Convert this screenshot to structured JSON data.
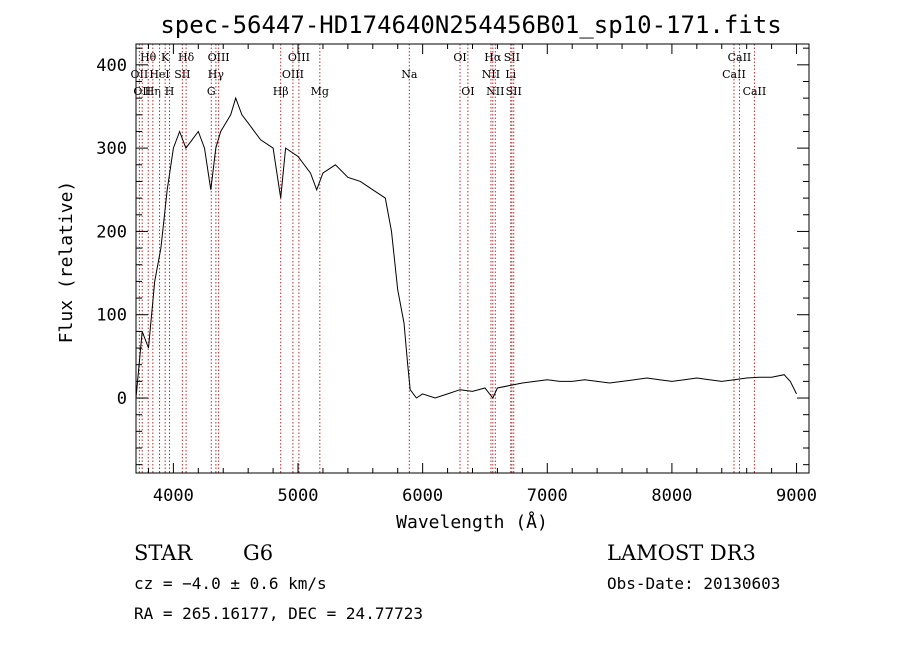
{
  "chart_data": {
    "type": "line",
    "title": "spec-56447-HD174640N254456B01_sp10-171.fits",
    "xlabel": "Wavelength (Å)",
    "ylabel": "Flux (relative)",
    "xlim": [
      3700,
      9100
    ],
    "ylim": [
      -90,
      425
    ],
    "x_ticks": [
      4000,
      5000,
      6000,
      7000,
      8000,
      9000
    ],
    "x_tick_labels": [
      "4000",
      "5000",
      "6000",
      "7000",
      "8000",
      "9000"
    ],
    "y_ticks": [
      0,
      100,
      200,
      300,
      400
    ],
    "y_tick_labels": [
      "0",
      "100",
      "200",
      "300",
      "400"
    ],
    "grid": false,
    "line_color": "#000000",
    "marker_color": "#b03030",
    "series": [
      {
        "x": [
          3700,
          3750,
          3800,
          3850,
          3900,
          3950,
          4000,
          4050,
          4100,
          4150,
          4200,
          4250,
          4300,
          4340,
          4380,
          4420,
          4460,
          4500,
          4550,
          4600,
          4700,
          4800,
          4861,
          4900,
          5000,
          5100,
          5150,
          5200,
          5300,
          5400,
          5500,
          5600,
          5700,
          5750,
          5800,
          5850,
          5880,
          5900,
          5950,
          6000,
          6100,
          6200,
          6300,
          6400,
          6500,
          6563,
          6600,
          6700,
          6800,
          6900,
          7000,
          7100,
          7200,
          7300,
          7400,
          7500,
          7600,
          7700,
          7800,
          7900,
          8000,
          8100,
          8200,
          8300,
          8400,
          8500,
          8600,
          8700,
          8800,
          8900,
          8950,
          9000
        ],
        "y": [
          0,
          80,
          60,
          140,
          180,
          250,
          300,
          320,
          300,
          310,
          320,
          300,
          250,
          300,
          320,
          330,
          340,
          360,
          340,
          330,
          310,
          300,
          240,
          300,
          290,
          270,
          250,
          270,
          280,
          265,
          260,
          250,
          240,
          200,
          130,
          90,
          40,
          10,
          0,
          5,
          0,
          5,
          10,
          8,
          12,
          0,
          12,
          15,
          18,
          20,
          22,
          20,
          20,
          22,
          20,
          18,
          20,
          22,
          24,
          22,
          20,
          22,
          24,
          22,
          20,
          22,
          24,
          25,
          25,
          28,
          20,
          5
        ]
      }
    ],
    "line_markers": [
      {
        "x": 3727,
        "labels": [
          "",
          "OII",
          ""
        ]
      },
      {
        "x": 3750,
        "labels": [
          "",
          "",
          "OII"
        ]
      },
      {
        "x": 3798,
        "labels": [
          "Hθ",
          "",
          ""
        ]
      },
      {
        "x": 3835,
        "labels": [
          "",
          "",
          "Hη"
        ]
      },
      {
        "x": 3889,
        "labels": [
          "",
          "HeI",
          ""
        ]
      },
      {
        "x": 3934,
        "labels": [
          "K",
          "",
          ""
        ]
      },
      {
        "x": 3969,
        "labels": [
          "",
          "",
          "H"
        ]
      },
      {
        "x": 4072,
        "labels": [
          "",
          "SII",
          ""
        ]
      },
      {
        "x": 4102,
        "labels": [
          "Hδ",
          "",
          ""
        ]
      },
      {
        "x": 4304,
        "labels": [
          "",
          "",
          "G"
        ]
      },
      {
        "x": 4341,
        "labels": [
          "",
          "Hγ",
          ""
        ]
      },
      {
        "x": 4363,
        "labels": [
          "OIII",
          "",
          ""
        ]
      },
      {
        "x": 4861,
        "labels": [
          "",
          "",
          "Hβ"
        ]
      },
      {
        "x": 4959,
        "labels": [
          "",
          "OIII",
          ""
        ]
      },
      {
        "x": 5007,
        "labels": [
          "OIII",
          "",
          ""
        ]
      },
      {
        "x": 5175,
        "labels": [
          "",
          "",
          "Mg"
        ]
      },
      {
        "x": 5893,
        "labels": [
          "",
          "Na",
          ""
        ]
      },
      {
        "x": 6300,
        "labels": [
          "OI",
          "",
          ""
        ]
      },
      {
        "x": 6363,
        "labels": [
          "",
          "",
          "OI"
        ]
      },
      {
        "x": 6548,
        "labels": [
          "",
          "NII",
          ""
        ]
      },
      {
        "x": 6563,
        "labels": [
          "Hα",
          "",
          ""
        ]
      },
      {
        "x": 6583,
        "labels": [
          "",
          "",
          "NII"
        ]
      },
      {
        "x": 6707,
        "labels": [
          "",
          "Li",
          ""
        ]
      },
      {
        "x": 6716,
        "labels": [
          "SII",
          "",
          ""
        ]
      },
      {
        "x": 6731,
        "labels": [
          "",
          "",
          "SII"
        ]
      },
      {
        "x": 8498,
        "labels": [
          "",
          "CaII",
          ""
        ]
      },
      {
        "x": 8542,
        "labels": [
          "CaII",
          "",
          ""
        ]
      },
      {
        "x": 8662,
        "labels": [
          "",
          "",
          "CaII"
        ]
      }
    ]
  },
  "info": {
    "object_class": "STAR",
    "subclass": "G6",
    "survey": "LAMOST DR3",
    "velocity": "cz = −4.0 ± 0.6 km/s",
    "obs_date": "Obs-Date: 20130603",
    "coords": "RA = 265.16177, DEC =  24.77723"
  }
}
